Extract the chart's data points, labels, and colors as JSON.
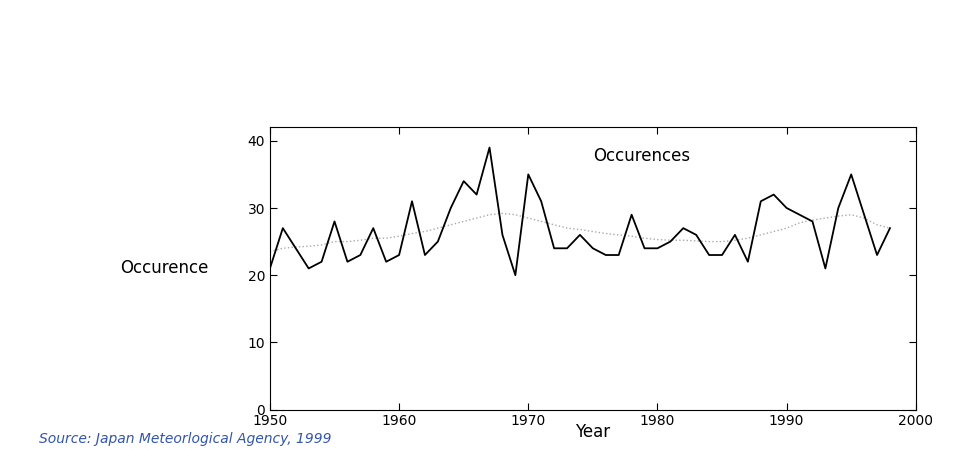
{
  "years": [
    1950,
    1951,
    1952,
    1953,
    1954,
    1955,
    1956,
    1957,
    1958,
    1959,
    1960,
    1961,
    1962,
    1963,
    1964,
    1965,
    1966,
    1967,
    1968,
    1969,
    1970,
    1971,
    1972,
    1973,
    1974,
    1975,
    1976,
    1977,
    1978,
    1979,
    1980,
    1981,
    1982,
    1983,
    1984,
    1985,
    1986,
    1987,
    1988,
    1989,
    1990,
    1991,
    1992,
    1993,
    1994,
    1995,
    1996,
    1997,
    1998
  ],
  "occurrences": [
    21,
    27,
    24,
    21,
    22,
    28,
    22,
    23,
    27,
    22,
    23,
    31,
    23,
    25,
    30,
    34,
    32,
    39,
    26,
    20,
    35,
    31,
    24,
    24,
    26,
    24,
    23,
    23,
    29,
    24,
    24,
    25,
    27,
    26,
    23,
    23,
    26,
    22,
    31,
    32,
    30,
    29,
    28,
    21,
    30,
    35,
    29,
    23,
    27
  ],
  "trend": [
    23.5,
    24.0,
    24.2,
    24.3,
    24.5,
    25.0,
    25.0,
    25.2,
    25.5,
    25.5,
    25.8,
    26.2,
    26.5,
    27.0,
    27.5,
    28.0,
    28.5,
    29.0,
    29.2,
    29.0,
    28.5,
    28.0,
    27.5,
    27.0,
    26.8,
    26.5,
    26.2,
    26.0,
    25.8,
    25.5,
    25.3,
    25.2,
    25.2,
    25.1,
    25.0,
    25.0,
    25.2,
    25.5,
    26.0,
    26.5,
    27.0,
    27.8,
    28.2,
    28.5,
    28.8,
    29.0,
    28.5,
    27.5,
    27.0
  ],
  "xlim": [
    1950,
    2000
  ],
  "ylim": [
    0,
    42
  ],
  "yticks": [
    0,
    10,
    20,
    30,
    40
  ],
  "xticks": [
    1950,
    1960,
    1970,
    1980,
    1990,
    2000
  ],
  "ylabel": "Occurence",
  "xlabel": "Year",
  "legend_label": "Occurences",
  "source_text": "Source: Japan Meteorlogical Agency, 1999",
  "line_color": "#000000",
  "trend_color": "#aaaaaa",
  "background_color": "#ffffff",
  "source_color": "#3355AA"
}
